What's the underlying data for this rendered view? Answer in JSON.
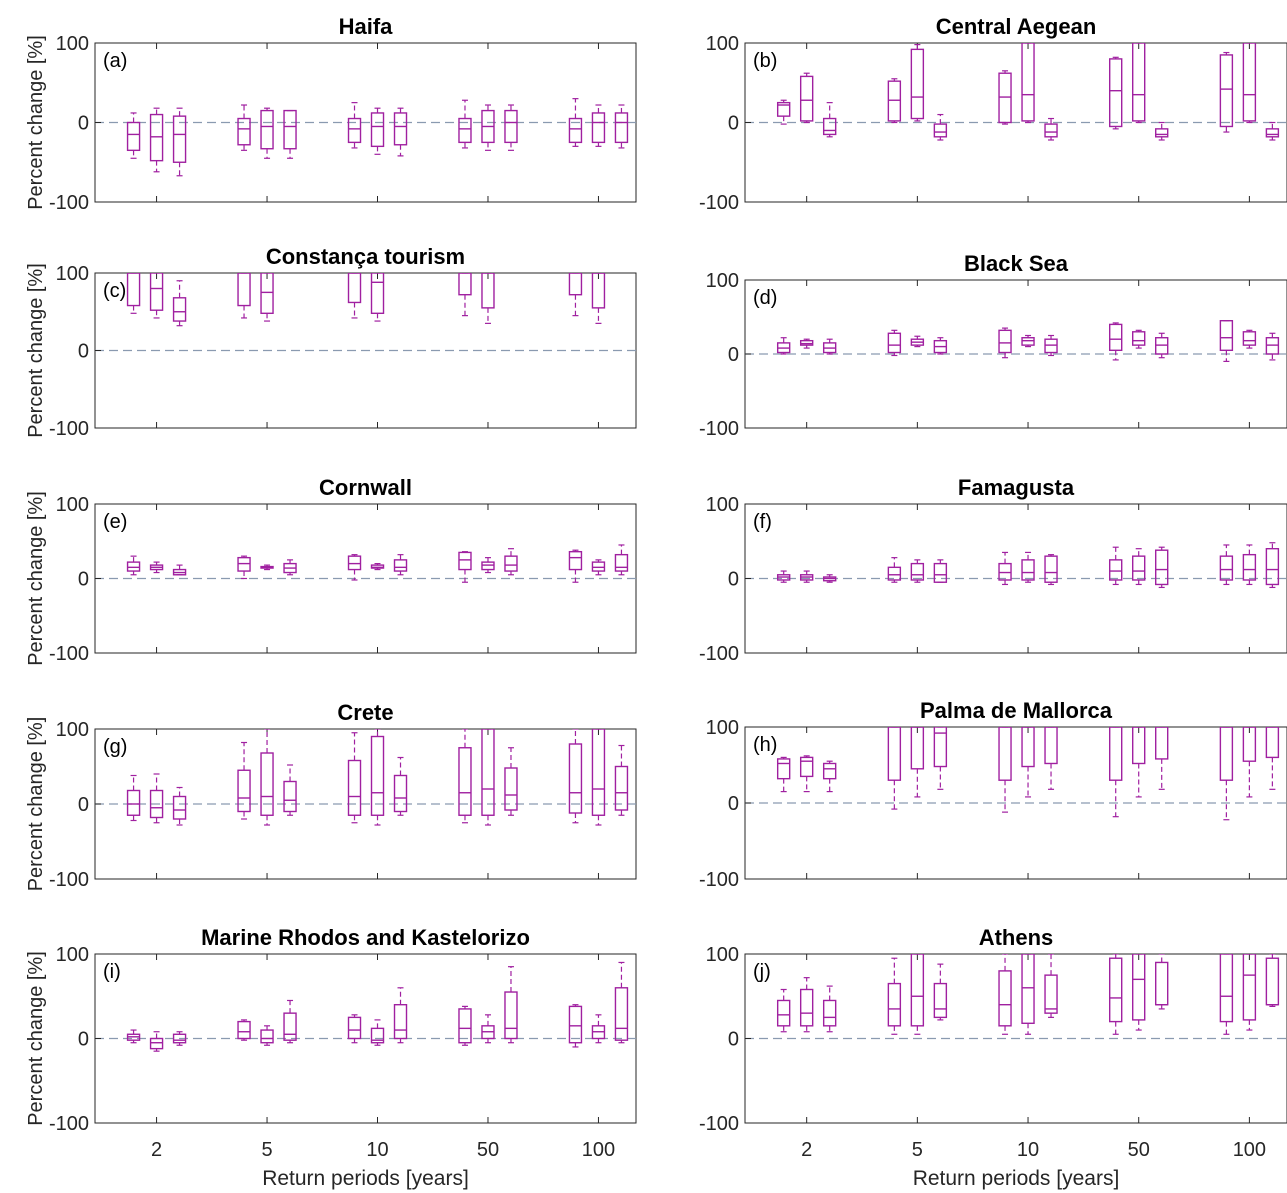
{
  "figure": {
    "y_axis_label": "Percent change [%]",
    "x_axis_label": "Return periods [years]",
    "y_tick_labels": [
      "100",
      "0",
      "-100"
    ],
    "x_tick_labels": [
      "2",
      "5",
      "10",
      "50",
      "100"
    ],
    "box_color": "#a020a0",
    "zero_line_color": "#8a9ab0"
  },
  "chart_data": [
    {
      "type": "box",
      "panel": "(a)",
      "title": "Haifa",
      "ylim": [
        -100,
        100
      ],
      "categories": [
        "2",
        "5",
        "10",
        "50",
        "100"
      ],
      "zero_line": true,
      "boxes": [
        [
          [
            -45,
            -35,
            -15,
            0,
            12
          ],
          [
            -62,
            -48,
            -18,
            10,
            18
          ],
          [
            -67,
            -50,
            -15,
            8,
            18
          ]
        ],
        [
          [
            -35,
            -28,
            -8,
            5,
            22
          ],
          [
            -45,
            -33,
            -5,
            15,
            18
          ],
          [
            -45,
            -33,
            -5,
            15,
            15
          ]
        ],
        [
          [
            -32,
            -25,
            -8,
            5,
            25
          ],
          [
            -40,
            -30,
            -5,
            12,
            18
          ],
          [
            -42,
            -28,
            -5,
            12,
            18
          ]
        ],
        [
          [
            -32,
            -25,
            -8,
            5,
            28
          ],
          [
            -35,
            -25,
            -5,
            15,
            22
          ],
          [
            -35,
            -25,
            0,
            15,
            22
          ]
        ],
        [
          [
            -30,
            -25,
            -8,
            5,
            30
          ],
          [
            -30,
            -25,
            0,
            12,
            22
          ],
          [
            -32,
            -25,
            0,
            12,
            22
          ]
        ]
      ]
    },
    {
      "type": "box",
      "panel": "(b)",
      "title": "Central Aegean",
      "ylim": [
        -100,
        100
      ],
      "categories": [
        "2",
        "5",
        "10",
        "50",
        "100"
      ],
      "zero_line": true,
      "boxes": [
        [
          [
            -2,
            8,
            22,
            25,
            28
          ],
          [
            0,
            2,
            28,
            58,
            62
          ],
          [
            -18,
            -15,
            -10,
            5,
            25
          ]
        ],
        [
          [
            0,
            2,
            28,
            52,
            55
          ],
          [
            2,
            5,
            32,
            92,
            98
          ],
          [
            -22,
            -18,
            -12,
            -2,
            10
          ]
        ],
        [
          [
            -2,
            0,
            32,
            62,
            65
          ],
          [
            0,
            2,
            35,
            100,
            100
          ],
          [
            -22,
            -18,
            -12,
            -2,
            5
          ]
        ],
        [
          [
            -8,
            -5,
            40,
            80,
            82
          ],
          [
            0,
            2,
            35,
            100,
            100
          ],
          [
            -22,
            -18,
            -15,
            -8,
            0
          ]
        ],
        [
          [
            -12,
            -5,
            42,
            85,
            88
          ],
          [
            0,
            2,
            35,
            100,
            100
          ],
          [
            -22,
            -18,
            -15,
            -8,
            0
          ]
        ]
      ]
    },
    {
      "type": "box",
      "panel": "(c)",
      "title": "Constança tourism",
      "ylim": [
        -100,
        100
      ],
      "categories": [
        "2",
        "5",
        "10",
        "50",
        "100"
      ],
      "zero_line": true,
      "boxes": [
        [
          [
            48,
            58,
            100,
            100,
            100
          ],
          [
            42,
            52,
            80,
            100,
            100
          ],
          [
            32,
            38,
            50,
            68,
            90
          ]
        ],
        [
          [
            42,
            58,
            100,
            100,
            100
          ],
          [
            38,
            48,
            75,
            100,
            100
          ],
          null
        ],
        [
          [
            42,
            62,
            100,
            100,
            100
          ],
          [
            38,
            48,
            88,
            100,
            100
          ],
          null
        ],
        [
          [
            45,
            72,
            100,
            100,
            100
          ],
          [
            35,
            55,
            100,
            100,
            100
          ],
          null
        ],
        [
          [
            45,
            72,
            100,
            100,
            100
          ],
          [
            35,
            55,
            100,
            100,
            100
          ],
          null
        ]
      ]
    },
    {
      "type": "box",
      "panel": "(d)",
      "title": "Black Sea",
      "ylim": [
        -100,
        100
      ],
      "categories": [
        "2",
        "5",
        "10",
        "50",
        "100"
      ],
      "zero_line": true,
      "boxes": [
        [
          [
            0,
            2,
            8,
            15,
            22
          ],
          [
            8,
            12,
            14,
            18,
            20
          ],
          [
            0,
            2,
            8,
            15,
            20
          ]
        ],
        [
          [
            -2,
            2,
            12,
            28,
            32
          ],
          [
            10,
            12,
            16,
            20,
            24
          ],
          [
            0,
            2,
            10,
            18,
            22
          ]
        ],
        [
          [
            -5,
            2,
            15,
            32,
            35
          ],
          [
            10,
            12,
            18,
            22,
            25
          ],
          [
            -2,
            2,
            12,
            20,
            25
          ]
        ],
        [
          [
            -8,
            5,
            20,
            40,
            42
          ],
          [
            8,
            12,
            18,
            30,
            32
          ],
          [
            -5,
            0,
            12,
            22,
            28
          ]
        ],
        [
          [
            -10,
            5,
            22,
            45,
            45
          ],
          [
            8,
            12,
            18,
            30,
            32
          ],
          [
            -8,
            0,
            12,
            22,
            28
          ]
        ]
      ]
    },
    {
      "type": "box",
      "panel": "(e)",
      "title": "Cornwall",
      "ylim": [
        -100,
        100
      ],
      "categories": [
        "2",
        "5",
        "10",
        "50",
        "100"
      ],
      "zero_line": true,
      "boxes": [
        [
          [
            5,
            10,
            15,
            22,
            30
          ],
          [
            8,
            12,
            15,
            18,
            22
          ],
          [
            5,
            5,
            8,
            12,
            18
          ]
        ],
        [
          [
            0,
            10,
            20,
            28,
            30
          ],
          [
            12,
            14,
            15,
            16,
            18
          ],
          [
            5,
            8,
            14,
            20,
            25
          ]
        ],
        [
          [
            -2,
            12,
            20,
            30,
            32
          ],
          [
            12,
            14,
            15,
            18,
            20
          ],
          [
            5,
            10,
            15,
            25,
            32
          ]
        ],
        [
          [
            -5,
            12,
            25,
            35,
            36
          ],
          [
            8,
            12,
            18,
            22,
            28
          ],
          [
            5,
            10,
            18,
            30,
            40
          ]
        ],
        [
          [
            -5,
            12,
            28,
            36,
            38
          ],
          [
            5,
            10,
            15,
            22,
            25
          ],
          [
            5,
            10,
            15,
            32,
            45
          ]
        ]
      ]
    },
    {
      "type": "box",
      "panel": "(f)",
      "title": "Famagusta",
      "ylim": [
        -100,
        100
      ],
      "categories": [
        "2",
        "5",
        "10",
        "50",
        "100"
      ],
      "zero_line": true,
      "boxes": [
        [
          [
            -5,
            -2,
            2,
            5,
            10
          ],
          [
            -5,
            -2,
            2,
            5,
            10
          ],
          [
            -5,
            -3,
            0,
            2,
            5
          ]
        ],
        [
          [
            -5,
            -2,
            5,
            15,
            28
          ],
          [
            -5,
            -2,
            5,
            20,
            25
          ],
          [
            -5,
            -5,
            5,
            20,
            25
          ]
        ],
        [
          [
            -8,
            -2,
            8,
            20,
            35
          ],
          [
            -5,
            -2,
            8,
            25,
            35
          ],
          [
            -8,
            -5,
            8,
            30,
            32
          ]
        ],
        [
          [
            -8,
            -2,
            10,
            25,
            42
          ],
          [
            -8,
            -2,
            10,
            30,
            40
          ],
          [
            -12,
            -8,
            12,
            38,
            42
          ]
        ],
        [
          [
            -8,
            -2,
            12,
            30,
            45
          ],
          [
            -8,
            -2,
            12,
            32,
            45
          ],
          [
            -12,
            -8,
            12,
            40,
            48
          ]
        ]
      ]
    },
    {
      "type": "box",
      "panel": "(g)",
      "title": "Crete",
      "ylim": [
        -100,
        100
      ],
      "categories": [
        "2",
        "5",
        "10",
        "50",
        "100"
      ],
      "zero_line": true,
      "boxes": [
        [
          [
            -22,
            -15,
            0,
            18,
            38
          ],
          [
            -25,
            -18,
            -5,
            18,
            40
          ],
          [
            -28,
            -20,
            -8,
            10,
            22
          ]
        ],
        [
          [
            -20,
            -10,
            8,
            45,
            82
          ],
          [
            -28,
            -15,
            10,
            68,
            100
          ],
          [
            -15,
            -10,
            5,
            30,
            52
          ]
        ],
        [
          [
            -25,
            -15,
            10,
            58,
            95
          ],
          [
            -28,
            -15,
            15,
            90,
            100
          ],
          [
            -15,
            -10,
            8,
            38,
            62
          ]
        ],
        [
          [
            -25,
            -15,
            15,
            75,
            100
          ],
          [
            -28,
            -15,
            20,
            100,
            100
          ],
          [
            -15,
            -8,
            12,
            48,
            75
          ]
        ],
        [
          [
            -25,
            -12,
            15,
            80,
            100
          ],
          [
            -28,
            -15,
            20,
            100,
            100
          ],
          [
            -15,
            -8,
            15,
            50,
            78
          ]
        ]
      ]
    },
    {
      "type": "box",
      "panel": "(h)",
      "title": "Palma de Mallorca",
      "ylim": [
        -100,
        100
      ],
      "categories": [
        "2",
        "5",
        "10",
        "50",
        "100"
      ],
      "zero_line": true,
      "boxes": [
        [
          [
            15,
            32,
            52,
            58,
            60
          ],
          [
            15,
            35,
            55,
            60,
            62
          ],
          [
            15,
            32,
            45,
            52,
            55
          ]
        ],
        [
          [
            -8,
            30,
            100,
            100,
            100
          ],
          [
            8,
            45,
            100,
            100,
            100
          ],
          [
            18,
            48,
            92,
            100,
            100
          ]
        ],
        [
          [
            -12,
            30,
            100,
            100,
            100
          ],
          [
            8,
            48,
            100,
            100,
            100
          ],
          [
            18,
            52,
            100,
            100,
            100
          ]
        ],
        [
          [
            -18,
            30,
            100,
            100,
            100
          ],
          [
            8,
            52,
            100,
            100,
            100
          ],
          [
            18,
            58,
            100,
            100,
            100
          ]
        ],
        [
          [
            -22,
            30,
            100,
            100,
            100
          ],
          [
            8,
            55,
            100,
            100,
            100
          ],
          [
            18,
            60,
            100,
            100,
            100
          ]
        ]
      ]
    },
    {
      "type": "box",
      "panel": "(i)",
      "title": "Marine Rhodos and Kastelorizo",
      "ylim": [
        -100,
        100
      ],
      "categories": [
        "2",
        "5",
        "10",
        "50",
        "100"
      ],
      "zero_line": true,
      "boxes": [
        [
          [
            -5,
            -2,
            2,
            5,
            10
          ],
          [
            -15,
            -12,
            -5,
            0,
            8
          ],
          [
            -8,
            -5,
            -2,
            5,
            8
          ]
        ],
        [
          [
            -2,
            0,
            8,
            20,
            22
          ],
          [
            -8,
            -5,
            0,
            10,
            15
          ],
          [
            -5,
            -2,
            5,
            30,
            45
          ]
        ],
        [
          [
            -5,
            0,
            10,
            25,
            28
          ],
          [
            -8,
            -5,
            -2,
            12,
            22
          ],
          [
            -5,
            0,
            10,
            40,
            60
          ]
        ],
        [
          [
            -8,
            -5,
            12,
            35,
            38
          ],
          [
            -5,
            0,
            8,
            15,
            28
          ],
          [
            -5,
            0,
            12,
            55,
            85
          ]
        ],
        [
          [
            -10,
            -5,
            15,
            38,
            40
          ],
          [
            -5,
            0,
            8,
            15,
            28
          ],
          [
            -5,
            -2,
            12,
            60,
            90
          ]
        ]
      ]
    },
    {
      "type": "box",
      "panel": "(j)",
      "title": "Athens",
      "ylim": [
        -100,
        100
      ],
      "categories": [
        "2",
        "5",
        "10",
        "50",
        "100"
      ],
      "zero_line": true,
      "boxes": [
        [
          [
            8,
            15,
            28,
            45,
            58
          ],
          [
            8,
            15,
            30,
            58,
            72
          ],
          [
            8,
            15,
            25,
            45,
            62
          ]
        ],
        [
          [
            5,
            15,
            35,
            65,
            95
          ],
          [
            5,
            15,
            50,
            100,
            100
          ],
          [
            22,
            25,
            35,
            65,
            88
          ]
        ],
        [
          [
            5,
            15,
            40,
            80,
            100
          ],
          [
            5,
            18,
            60,
            100,
            100
          ],
          [
            25,
            30,
            35,
            75,
            100
          ]
        ],
        [
          [
            5,
            20,
            48,
            95,
            100
          ],
          [
            10,
            22,
            70,
            100,
            100
          ],
          [
            35,
            40,
            40,
            90,
            100
          ]
        ],
        [
          [
            5,
            20,
            50,
            100,
            100
          ],
          [
            10,
            22,
            75,
            100,
            100
          ],
          [
            38,
            40,
            40,
            95,
            100
          ]
        ]
      ]
    }
  ]
}
